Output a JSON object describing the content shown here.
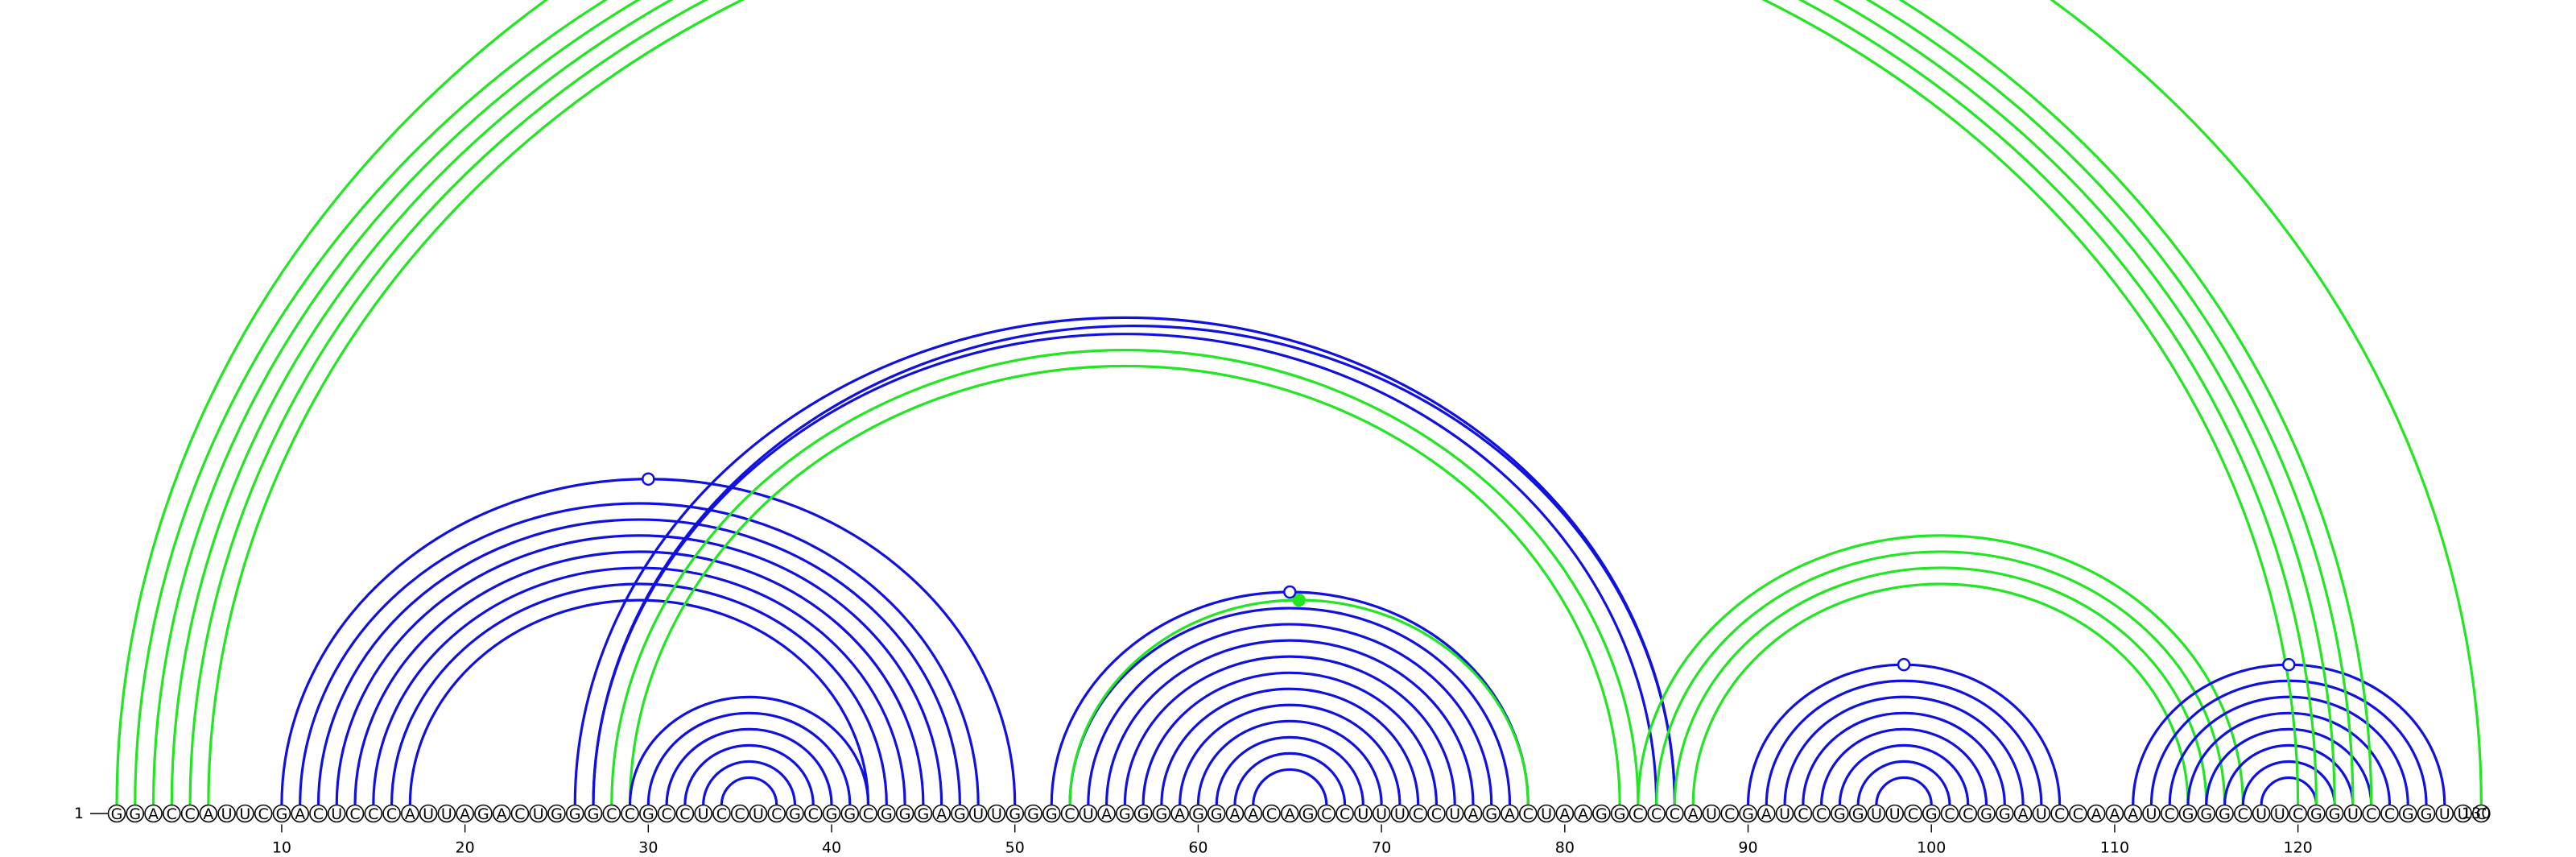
{
  "sequence": "GGACCAUUCGACUCCCAUUAGACUGGGCCGCCUCCUCGCGGCGGGAGUUGGGCUAGGGAGGAACAGCCUUUCCUAGACUAAGGCCCAUCGAUCCGGUUCGCCGGAUCCAAAUCGGGCUUCGGUCCGGUUC",
  "start_label": "1",
  "end_label": "130",
  "tick_labels": [
    "10",
    "20",
    "30",
    "40",
    "50",
    "60",
    "70",
    "80",
    "90",
    "100",
    "110",
    "120"
  ],
  "colors": {
    "blue": "#1010e0",
    "green": "#22e622",
    "nucleotide_stroke": "#000000"
  },
  "helices": [
    {
      "color": "blue",
      "pairs": [
        [
          10,
          50
        ],
        [
          11,
          48
        ],
        [
          12,
          47
        ],
        [
          13,
          46
        ],
        [
          14,
          45
        ],
        [
          15,
          44
        ],
        [
          16,
          43
        ],
        [
          17,
          42
        ]
      ]
    },
    {
      "color": "blue",
      "pairs": [
        [
          26,
          86
        ],
        [
          27,
          86
        ],
        [
          27,
          85
        ]
      ]
    },
    {
      "color": "green",
      "pairs": [
        [
          28,
          84
        ],
        [
          29,
          83
        ]
      ]
    },
    {
      "color": "blue",
      "pairs": [
        [
          29,
          42
        ],
        [
          30,
          41
        ],
        [
          31,
          40
        ],
        [
          32,
          39
        ],
        [
          33,
          38
        ],
        [
          34,
          37
        ]
      ]
    },
    {
      "color": "blue",
      "pairs": [
        [
          52,
          78
        ],
        [
          53,
          77
        ],
        [
          54,
          76
        ],
        [
          55,
          75
        ],
        [
          56,
          74
        ],
        [
          57,
          73
        ],
        [
          58,
          72
        ],
        [
          59,
          71
        ],
        [
          60,
          70
        ],
        [
          61,
          69
        ],
        [
          62,
          68
        ],
        [
          63,
          67
        ]
      ]
    },
    {
      "color": "green",
      "pairs": [
        [
          53,
          78
        ]
      ]
    },
    {
      "color": "green",
      "pairs": [
        [
          84,
          117
        ],
        [
          85,
          116
        ],
        [
          86,
          115
        ],
        [
          87,
          114
        ]
      ]
    },
    {
      "color": "blue",
      "pairs": [
        [
          90,
          107
        ],
        [
          91,
          106
        ],
        [
          92,
          105
        ],
        [
          93,
          104
        ],
        [
          94,
          103
        ],
        [
          95,
          102
        ],
        [
          96,
          101
        ],
        [
          97,
          100
        ]
      ]
    },
    {
      "color": "blue",
      "pairs": [
        [
          111,
          128
        ],
        [
          112,
          127
        ],
        [
          113,
          126
        ],
        [
          114,
          125
        ],
        [
          115,
          124
        ],
        [
          116,
          123
        ],
        [
          117,
          122
        ],
        [
          118,
          121
        ]
      ]
    },
    {
      "color": "green",
      "pairs": [
        [
          1,
          130
        ],
        [
          2,
          124
        ],
        [
          3,
          123
        ],
        [
          4,
          122
        ],
        [
          5,
          121
        ],
        [
          6,
          120
        ]
      ]
    }
  ],
  "markers": [
    {
      "pos": 29.5,
      "arc_index": 0,
      "filled": false,
      "color": "blue"
    },
    {
      "pos": 65,
      "arc_index": 5,
      "filled": true,
      "color": "green"
    },
    {
      "pos": 65,
      "arc_index": 4,
      "filled": false,
      "color": "blue"
    },
    {
      "pos": 98.5,
      "arc_index": 7,
      "filled": false,
      "color": "blue"
    },
    {
      "pos": 119.5,
      "arc_index": 8,
      "filled": false,
      "color": "blue"
    },
    {
      "pos": 65,
      "arc_index": 9,
      "filled": false,
      "color": "green"
    }
  ]
}
